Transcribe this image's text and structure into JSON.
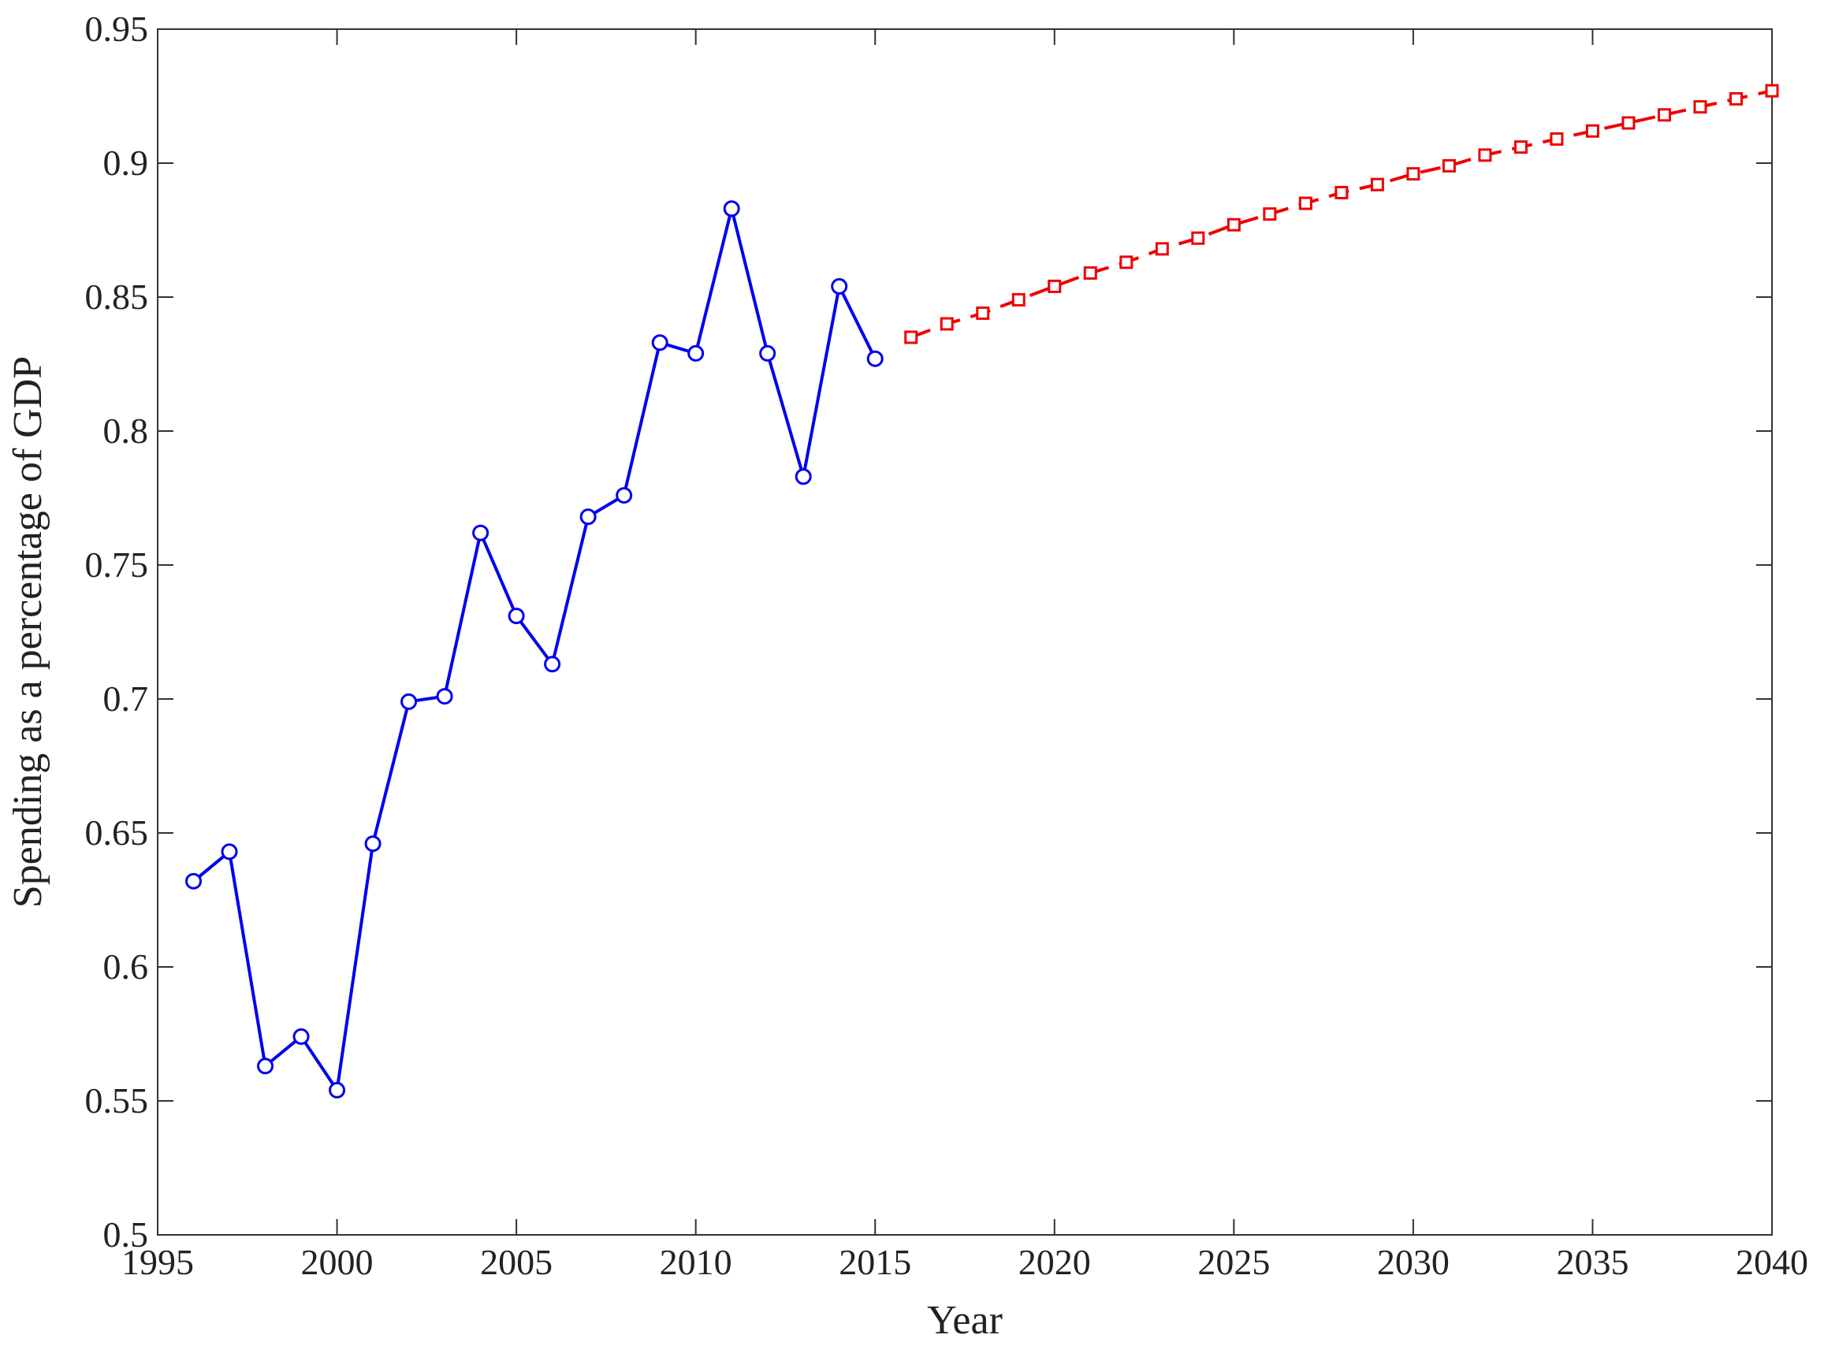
{
  "chart_data": {
    "type": "line",
    "x_label": "Year",
    "y_label": "Spending as a percentage of GDP",
    "x": [
      1996,
      1997,
      1998,
      1999,
      2000,
      2001,
      2002,
      2003,
      2004,
      2005,
      2006,
      2007,
      2008,
      2009,
      2010,
      2011,
      2012,
      2013,
      2014,
      2015,
      2016,
      2017,
      2018,
      2019,
      2020,
      2021,
      2022,
      2023,
      2024,
      2025,
      2026,
      2027,
      2028,
      2029,
      2030,
      2031,
      2032,
      2033,
      2034,
      2035,
      2036,
      2037,
      2038,
      2039,
      2040
    ],
    "series": [
      {
        "color": "#0000ee",
        "marker": "circle",
        "line_style": "solid",
        "values": [
          0.632,
          0.643,
          0.563,
          0.574,
          0.554,
          0.646,
          0.699,
          0.701,
          0.762,
          0.731,
          0.713,
          0.768,
          0.776,
          0.833,
          0.829,
          0.883,
          0.829,
          0.783,
          0.854,
          0.827,
          null,
          null,
          null,
          null,
          null,
          null,
          null,
          null,
          null,
          null,
          null,
          null,
          null,
          null,
          null,
          null,
          null,
          null,
          null,
          null,
          null,
          null,
          null,
          null,
          null
        ]
      },
      {
        "color": "#ee0000",
        "marker": "square",
        "line_style": "dashed",
        "values": [
          null,
          null,
          null,
          null,
          null,
          null,
          null,
          null,
          null,
          null,
          null,
          null,
          null,
          null,
          null,
          null,
          null,
          null,
          null,
          null,
          0.835,
          0.84,
          0.844,
          0.849,
          0.854,
          0.859,
          0.863,
          0.868,
          0.872,
          0.877,
          0.881,
          0.885,
          0.889,
          0.892,
          0.896,
          0.899,
          0.903,
          0.906,
          0.909,
          0.912,
          0.915,
          0.918,
          0.921,
          0.924,
          0.927
        ]
      }
    ],
    "xlim": [
      1995,
      2040
    ],
    "xticks": [
      1995,
      2000,
      2005,
      2010,
      2015,
      2020,
      2025,
      2030,
      2035,
      2040
    ],
    "ylim": [
      0.5,
      0.95
    ],
    "yticks": [
      0.5,
      0.55,
      0.6,
      0.65,
      0.7,
      0.75,
      0.8,
      0.85,
      0.9,
      0.95
    ],
    "grid": false
  }
}
